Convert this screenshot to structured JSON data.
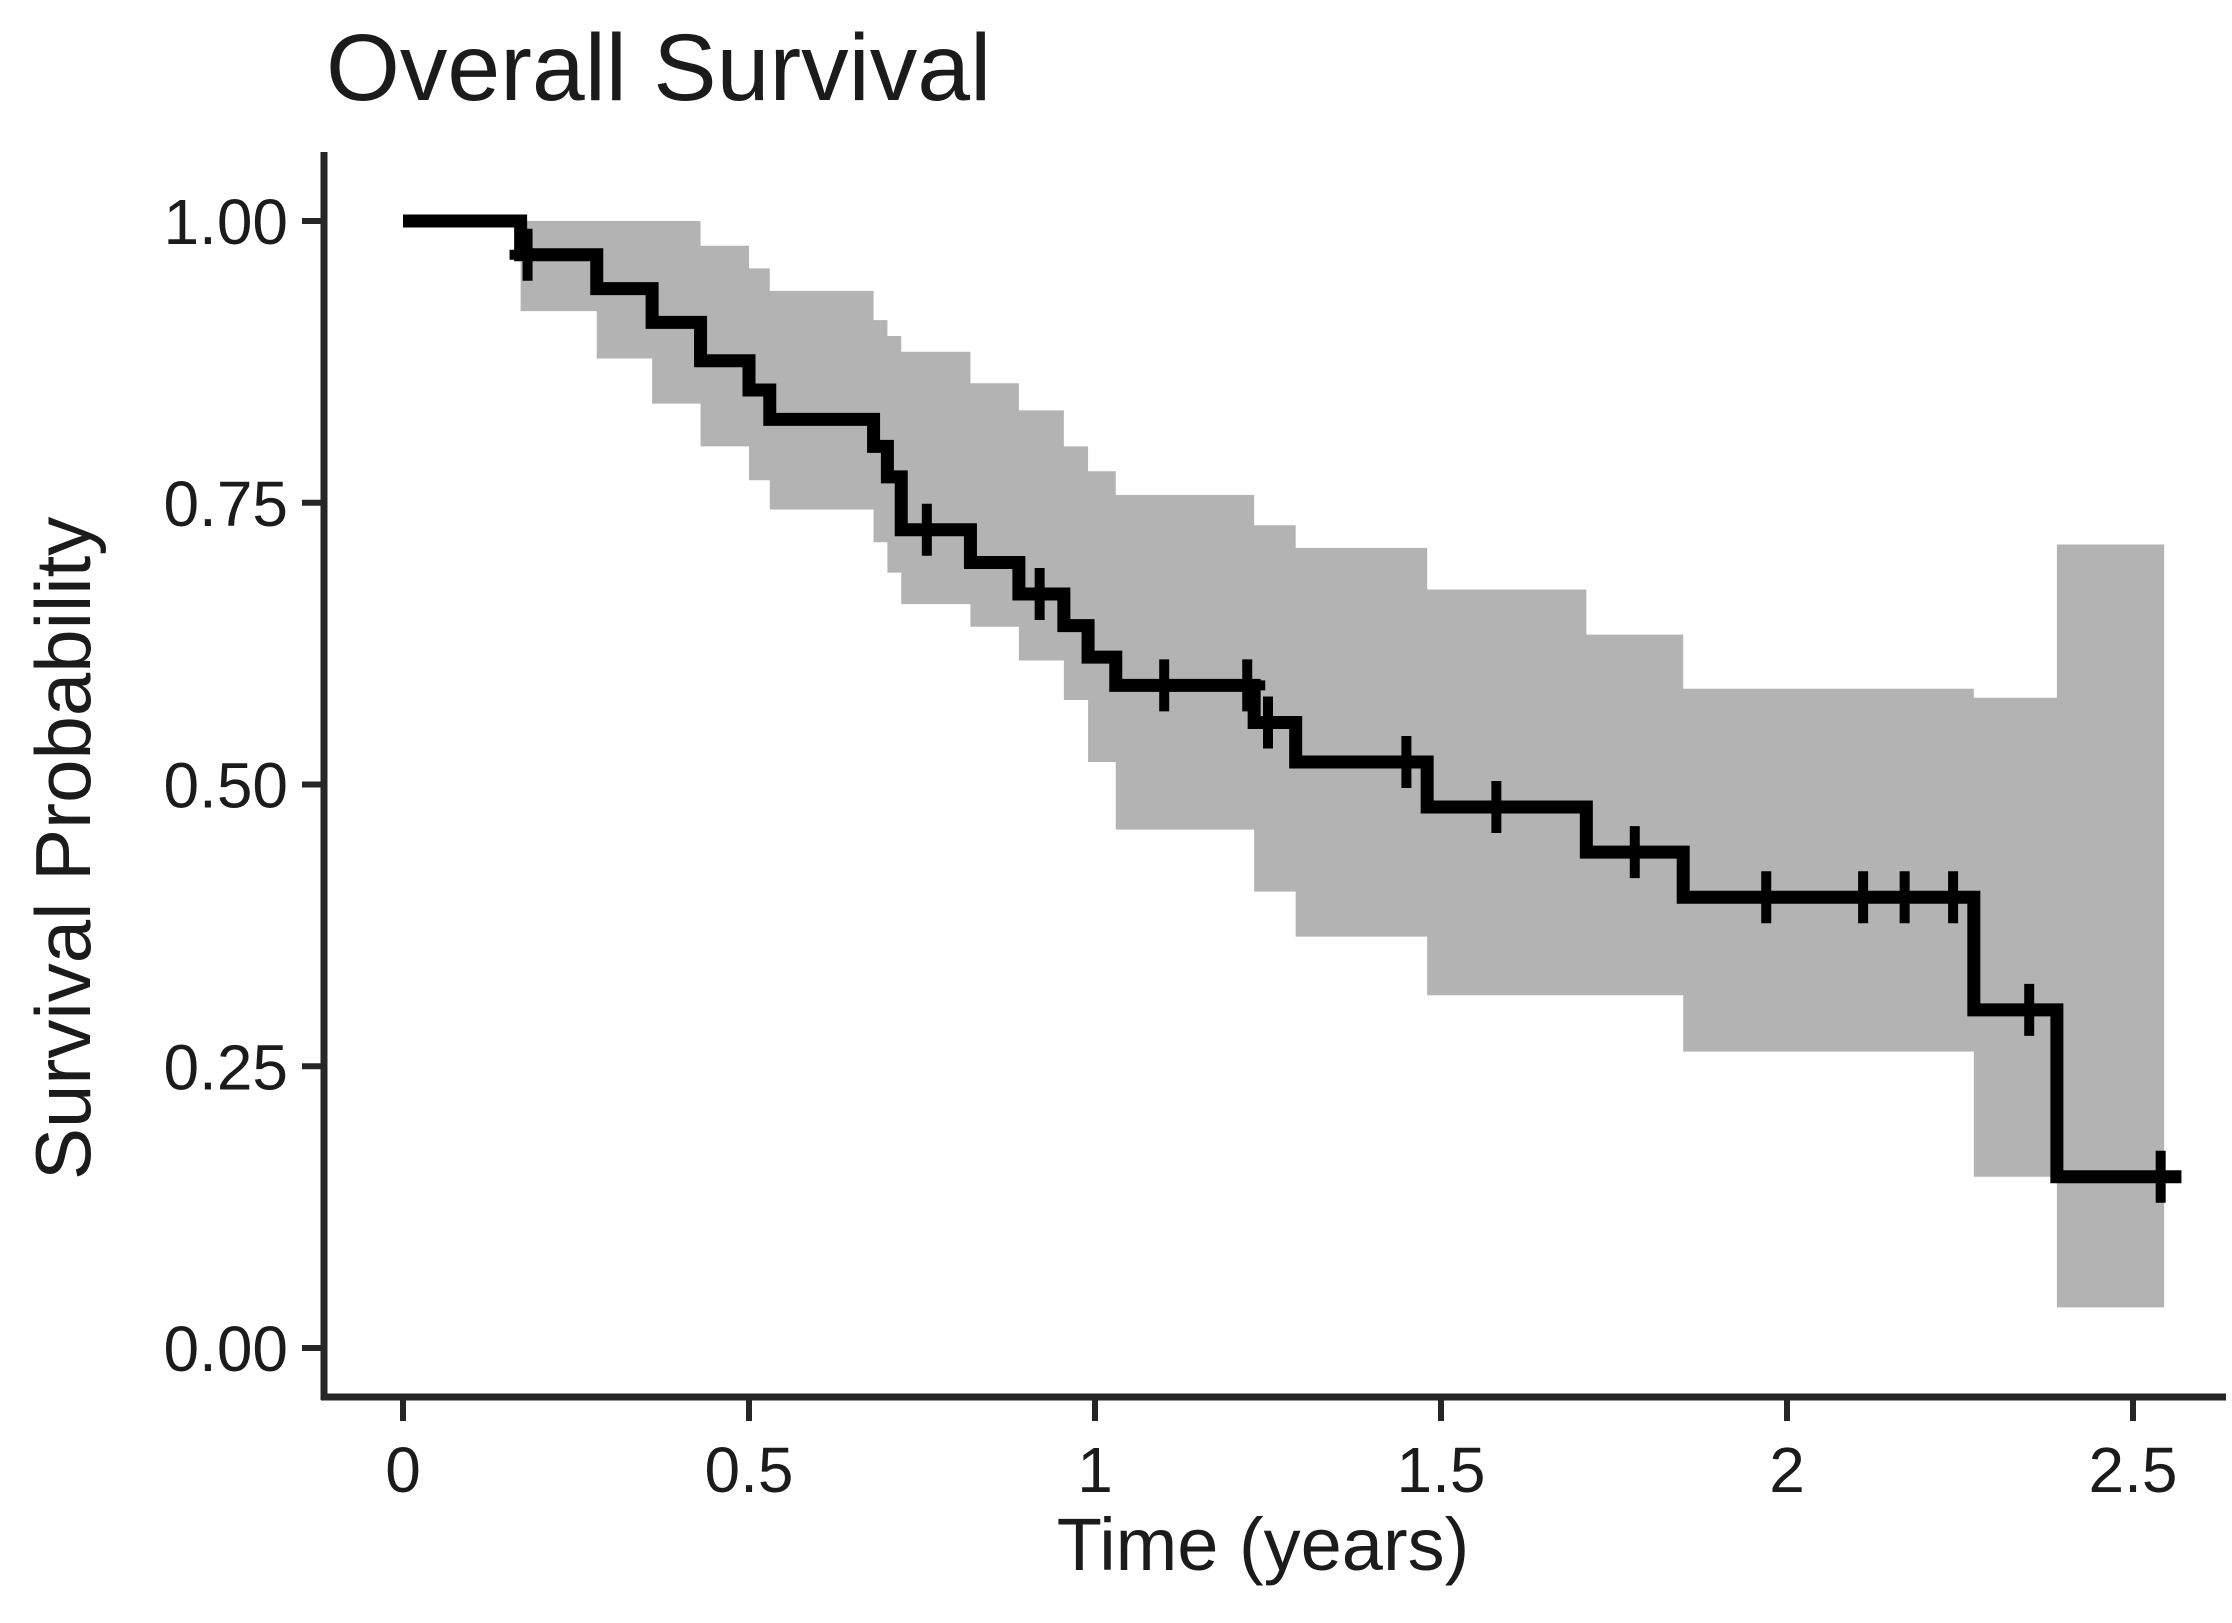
{
  "chart_data": {
    "type": "line",
    "subtype": "kaplan-meier-step-curve",
    "title": "Overall Survival",
    "xlabel": "Time (years)",
    "ylabel": "Survival Probability",
    "xlim": [
      0,
      2.6
    ],
    "ylim": [
      0,
      1
    ],
    "grid": "off",
    "legend": "none",
    "x_ticks": [
      {
        "label": "0",
        "value": 0
      },
      {
        "label": "0.5",
        "value": 0.5
      },
      {
        "label": "1",
        "value": 1
      },
      {
        "label": "1.5",
        "value": 1.5
      },
      {
        "label": "2",
        "value": 2
      },
      {
        "label": "2.5",
        "value": 2.5
      }
    ],
    "y_ticks": [
      {
        "label": "1.00",
        "value": 1.0
      },
      {
        "label": "0.75",
        "value": 0.75
      },
      {
        "label": "0.50",
        "value": 0.5
      },
      {
        "label": "0.25",
        "value": 0.25
      },
      {
        "label": "0.00",
        "value": 0.0
      }
    ],
    "colors": {
      "curve": "#000000",
      "ci_band": "#b3b3b3",
      "axis": "#262626",
      "text": "#1b1b1b"
    },
    "series": [
      {
        "name": "Overall Survival",
        "end_time": 2.57,
        "steps": [
          {
            "t": 0.0,
            "s": 1.0
          },
          {
            "t": 0.17,
            "s": 0.97
          },
          {
            "t": 0.28,
            "s": 0.94
          },
          {
            "t": 0.36,
            "s": 0.91
          },
          {
            "t": 0.43,
            "s": 0.876
          },
          {
            "t": 0.5,
            "s": 0.85
          },
          {
            "t": 0.53,
            "s": 0.824
          },
          {
            "t": 0.68,
            "s": 0.8
          },
          {
            "t": 0.7,
            "s": 0.773
          },
          {
            "t": 0.72,
            "s": 0.726
          },
          {
            "t": 0.82,
            "s": 0.697
          },
          {
            "t": 0.89,
            "s": 0.669
          },
          {
            "t": 0.955,
            "s": 0.641
          },
          {
            "t": 0.99,
            "s": 0.613
          },
          {
            "t": 1.03,
            "s": 0.588
          },
          {
            "t": 1.23,
            "s": 0.555
          },
          {
            "t": 1.29,
            "s": 0.52
          },
          {
            "t": 1.48,
            "s": 0.48
          },
          {
            "t": 1.71,
            "s": 0.44
          },
          {
            "t": 1.85,
            "s": 0.4
          },
          {
            "t": 2.27,
            "s": 0.3
          },
          {
            "t": 2.39,
            "s": 0.152
          }
        ]
      }
    ],
    "censor_marks": [
      {
        "t": 0.18,
        "s": 0.97
      },
      {
        "t": 0.757,
        "s": 0.726
      },
      {
        "t": 0.92,
        "s": 0.669
      },
      {
        "t": 1.1,
        "s": 0.588
      },
      {
        "t": 1.22,
        "s": 0.588
      },
      {
        "t": 1.25,
        "s": 0.555
      },
      {
        "t": 1.45,
        "s": 0.52
      },
      {
        "t": 1.58,
        "s": 0.48
      },
      {
        "t": 1.78,
        "s": 0.44
      },
      {
        "t": 1.97,
        "s": 0.4
      },
      {
        "t": 2.11,
        "s": 0.4
      },
      {
        "t": 2.17,
        "s": 0.4
      },
      {
        "t": 2.24,
        "s": 0.4
      },
      {
        "t": 2.35,
        "s": 0.3
      },
      {
        "t": 2.54,
        "s": 0.152
      }
    ],
    "confidence_band": {
      "end_time": 2.545,
      "segments": [
        {
          "t": 0.17,
          "lower": 0.92,
          "upper": 1.0
        },
        {
          "t": 0.28,
          "lower": 0.878,
          "upper": 1.0
        },
        {
          "t": 0.36,
          "lower": 0.838,
          "upper": 1.0
        },
        {
          "t": 0.43,
          "lower": 0.8,
          "upper": 0.978
        },
        {
          "t": 0.5,
          "lower": 0.77,
          "upper": 0.958
        },
        {
          "t": 0.53,
          "lower": 0.744,
          "upper": 0.938
        },
        {
          "t": 0.68,
          "lower": 0.715,
          "upper": 0.912
        },
        {
          "t": 0.7,
          "lower": 0.688,
          "upper": 0.898
        },
        {
          "t": 0.72,
          "lower": 0.66,
          "upper": 0.884
        },
        {
          "t": 0.82,
          "lower": 0.64,
          "upper": 0.856
        },
        {
          "t": 0.89,
          "lower": 0.61,
          "upper": 0.832
        },
        {
          "t": 0.955,
          "lower": 0.575,
          "upper": 0.8
        },
        {
          "t": 0.99,
          "lower": 0.52,
          "upper": 0.778
        },
        {
          "t": 1.03,
          "lower": 0.46,
          "upper": 0.757
        },
        {
          "t": 1.23,
          "lower": 0.405,
          "upper": 0.73
        },
        {
          "t": 1.29,
          "lower": 0.365,
          "upper": 0.71
        },
        {
          "t": 1.48,
          "lower": 0.313,
          "upper": 0.673
        },
        {
          "t": 1.71,
          "lower": 0.313,
          "upper": 0.633
        },
        {
          "t": 1.85,
          "lower": 0.263,
          "upper": 0.585
        },
        {
          "t": 2.27,
          "lower": 0.152,
          "upper": 0.577
        },
        {
          "t": 2.39,
          "lower": 0.036,
          "upper": 0.713
        }
      ]
    }
  }
}
